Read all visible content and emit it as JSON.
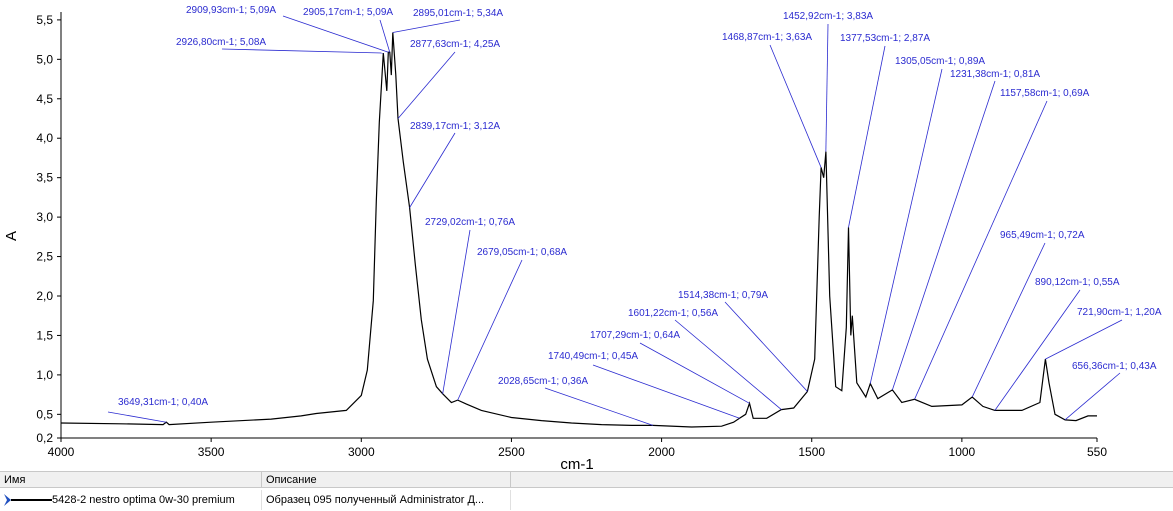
{
  "chart_data": {
    "type": "line",
    "xlabel": "cm-1",
    "ylabel": "A",
    "color": "#000000",
    "annotation_color": "#2b2bd0",
    "xlim": [
      4000,
      550
    ],
    "xticks": [
      4000,
      3500,
      3000,
      2500,
      2000,
      1500,
      1000,
      550
    ],
    "ylim": [
      0.2,
      5.6
    ],
    "yticks": [
      {
        "value": 0.2,
        "label": "0,2"
      },
      {
        "value": 0.5,
        "label": "0,5"
      },
      {
        "value": 1.0,
        "label": "1,0"
      },
      {
        "value": 1.5,
        "label": "1,5"
      },
      {
        "value": 2.0,
        "label": "2,0"
      },
      {
        "value": 2.5,
        "label": "2,5"
      },
      {
        "value": 3.0,
        "label": "3,0"
      },
      {
        "value": 3.5,
        "label": "3,5"
      },
      {
        "value": 4.0,
        "label": "4,0"
      },
      {
        "value": 4.5,
        "label": "4,5"
      },
      {
        "value": 5.0,
        "label": "5,0"
      },
      {
        "value": 5.5,
        "label": "5,5"
      }
    ],
    "x": [
      4000,
      3800,
      3660,
      3649.31,
      3640,
      3500,
      3300,
      3200,
      3150,
      3050,
      3000,
      2980,
      2960,
      2950,
      2940,
      2926.8,
      2915,
      2909.93,
      2905.17,
      2900,
      2895.01,
      2885,
      2877.63,
      2860,
      2839.17,
      2820,
      2800,
      2780,
      2750,
      2729.02,
      2700,
      2679.05,
      2650,
      2600,
      2500,
      2400,
      2300,
      2200,
      2100,
      2028.65,
      1900,
      1800,
      1760,
      1740.49,
      1720,
      1707.29,
      1695,
      1650,
      1601.22,
      1560,
      1514.38,
      1490,
      1475,
      1468.87,
      1460,
      1452.92,
      1440,
      1420,
      1400,
      1385,
      1377.53,
      1370,
      1365,
      1350,
      1320,
      1305.05,
      1280,
      1231.38,
      1200,
      1157.58,
      1100,
      1000,
      965.49,
      930,
      890.12,
      800,
      740,
      721.9,
      710,
      690,
      656.36,
      620,
      580,
      550
    ],
    "values": [
      0.39,
      0.38,
      0.37,
      0.4,
      0.37,
      0.4,
      0.44,
      0.48,
      0.51,
      0.55,
      0.74,
      1.06,
      1.94,
      3.2,
      4.2,
      5.08,
      4.6,
      5.09,
      5.09,
      4.8,
      5.34,
      4.8,
      4.25,
      3.7,
      3.12,
      2.4,
      1.7,
      1.2,
      0.85,
      0.76,
      0.65,
      0.68,
      0.63,
      0.55,
      0.46,
      0.42,
      0.39,
      0.37,
      0.36,
      0.36,
      0.34,
      0.35,
      0.4,
      0.45,
      0.5,
      0.64,
      0.45,
      0.45,
      0.56,
      0.58,
      0.79,
      1.2,
      3.0,
      3.63,
      3.5,
      3.83,
      2.0,
      0.85,
      0.8,
      1.6,
      2.87,
      1.5,
      1.75,
      0.9,
      0.72,
      0.89,
      0.7,
      0.81,
      0.65,
      0.69,
      0.6,
      0.62,
      0.72,
      0.6,
      0.55,
      0.55,
      0.65,
      1.2,
      0.9,
      0.5,
      0.43,
      0.42,
      0.48,
      0.48
    ],
    "annotations": [
      {
        "x": 3649.31,
        "y": 0.4,
        "label": "3649,31cm-1; 0,40A"
      },
      {
        "x": 2926.8,
        "y": 5.08,
        "label": "2926,80cm-1; 5,08A"
      },
      {
        "x": 2909.93,
        "y": 5.09,
        "label": "2909,93cm-1; 5,09A"
      },
      {
        "x": 2905.17,
        "y": 5.09,
        "label": "2905,17cm-1; 5,09A"
      },
      {
        "x": 2895.01,
        "y": 5.34,
        "label": "2895,01cm-1; 5,34A"
      },
      {
        "x": 2877.63,
        "y": 4.25,
        "label": "2877,63cm-1; 4,25A"
      },
      {
        "x": 2839.17,
        "y": 3.12,
        "label": "2839,17cm-1; 3,12A"
      },
      {
        "x": 2729.02,
        "y": 0.76,
        "label": "2729,02cm-1; 0,76A"
      },
      {
        "x": 2679.05,
        "y": 0.68,
        "label": "2679,05cm-1; 0,68A"
      },
      {
        "x": 2028.65,
        "y": 0.36,
        "label": "2028,65cm-1; 0,36A"
      },
      {
        "x": 1740.49,
        "y": 0.45,
        "label": "1740,49cm-1; 0,45A"
      },
      {
        "x": 1707.29,
        "y": 0.64,
        "label": "1707,29cm-1; 0,64A"
      },
      {
        "x": 1601.22,
        "y": 0.56,
        "label": "1601,22cm-1; 0,56A"
      },
      {
        "x": 1514.38,
        "y": 0.79,
        "label": "1514,38cm-1; 0,79A"
      },
      {
        "x": 1468.87,
        "y": 3.63,
        "label": "1468,87cm-1; 3,63A"
      },
      {
        "x": 1452.92,
        "y": 3.83,
        "label": "1452,92cm-1; 3,83A"
      },
      {
        "x": 1377.53,
        "y": 2.87,
        "label": "1377,53cm-1; 2,87A"
      },
      {
        "x": 1305.05,
        "y": 0.89,
        "label": "1305,05cm-1; 0,89A"
      },
      {
        "x": 1231.38,
        "y": 0.81,
        "label": "1231,38cm-1; 0,81A"
      },
      {
        "x": 1157.58,
        "y": 0.69,
        "label": "1157,58cm-1; 0,69A"
      },
      {
        "x": 965.49,
        "y": 0.72,
        "label": "965,49cm-1; 0,72A"
      },
      {
        "x": 890.12,
        "y": 0.55,
        "label": "890,12cm-1; 0,55A"
      },
      {
        "x": 721.9,
        "y": 1.2,
        "label": "721,90cm-1; 1,20A"
      },
      {
        "x": 656.36,
        "y": 0.43,
        "label": "656,36cm-1; 0,43A"
      }
    ]
  },
  "table": {
    "headers": [
      "Имя",
      "Описание"
    ],
    "rows": [
      [
        "5428-2 nestro optima 0w-30 premium",
        "Образец 095 полученный Administrator Д..."
      ]
    ]
  }
}
